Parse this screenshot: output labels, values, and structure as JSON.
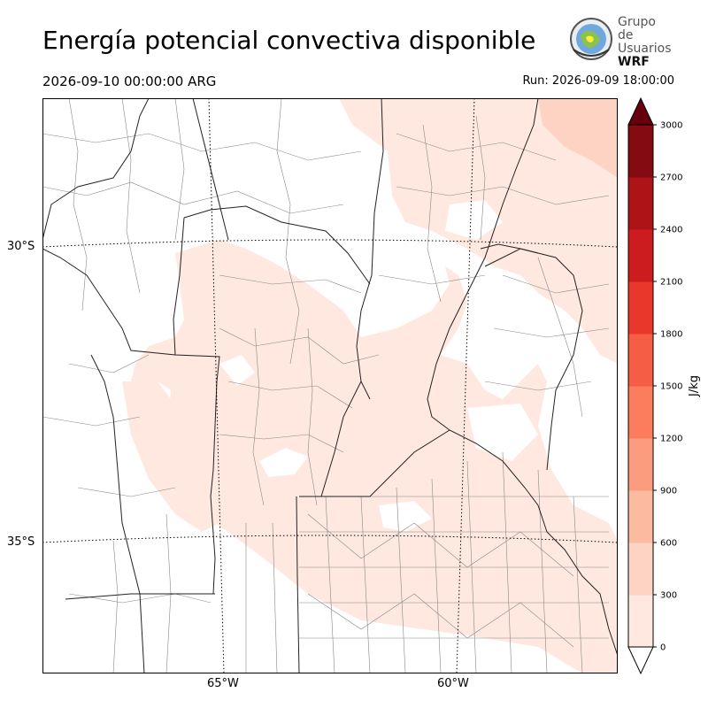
{
  "header": {
    "title": "Energía potencial convectiva disponible",
    "valid_time": "2026-09-10 00:00:00 ARG",
    "run_time": "Run: 2026-09-09 18:00:00"
  },
  "logo": {
    "line1": "Grupo de",
    "line2": "Usuarios",
    "line3": "WRF"
  },
  "map": {
    "lat_labels": [
      "30°S",
      "35°S"
    ],
    "lon_labels": [
      "65°W",
      "60°W"
    ]
  },
  "colorbar": {
    "label": "J/kg",
    "ticks": [
      "0",
      "300",
      "600",
      "900",
      "1200",
      "1500",
      "1800",
      "2100",
      "2400",
      "2700",
      "3000"
    ],
    "colors": [
      "#fee8df",
      "#fdd3c3",
      "#fcbba1",
      "#fc9c7e",
      "#fb7d5e",
      "#f55d44",
      "#ea372b",
      "#cc1c1f",
      "#ac1417",
      "#850b12"
    ],
    "over_color": "#67000d",
    "under_color": "#ffffff"
  }
}
